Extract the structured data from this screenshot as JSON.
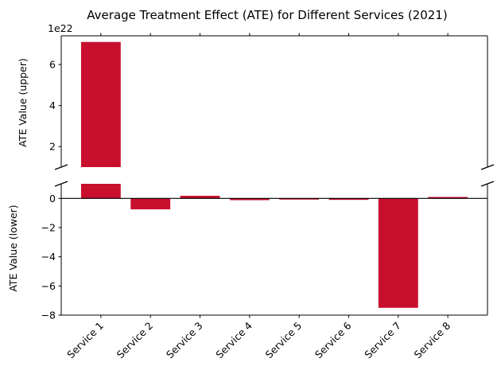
{
  "chart_data": {
    "type": "bar",
    "title": "Average Treatment Effect (ATE) for Different Services (2021)",
    "categories": [
      "Service 1",
      "Service 2",
      "Service 3",
      "Service 4",
      "Service 5",
      "Service 6",
      "Service 7",
      "Service 8"
    ],
    "values": [
      7.1e+22,
      -0.75,
      0.18,
      -0.12,
      -0.08,
      -0.1,
      -7.5,
      0.1
    ],
    "bar_color": "#c8102e",
    "broken_axis": true,
    "upper": {
      "ylabel": "ATE Value (upper)",
      "ylim": [
        1e+22,
        7.4e+22
      ],
      "yticks": [
        2e+22,
        4e+22,
        6e+22
      ],
      "ytick_labels": [
        "2",
        "4",
        "6"
      ],
      "offset_label": "1e22"
    },
    "lower": {
      "ylabel": "ATE Value (lower)",
      "ylim": [
        -8,
        1
      ],
      "yticks": [
        -8,
        -6,
        -4,
        -2,
        0
      ],
      "ytick_labels": [
        "−8",
        "−6",
        "−4",
        "−2",
        "0"
      ]
    },
    "zero_line": true,
    "grid": false
  }
}
